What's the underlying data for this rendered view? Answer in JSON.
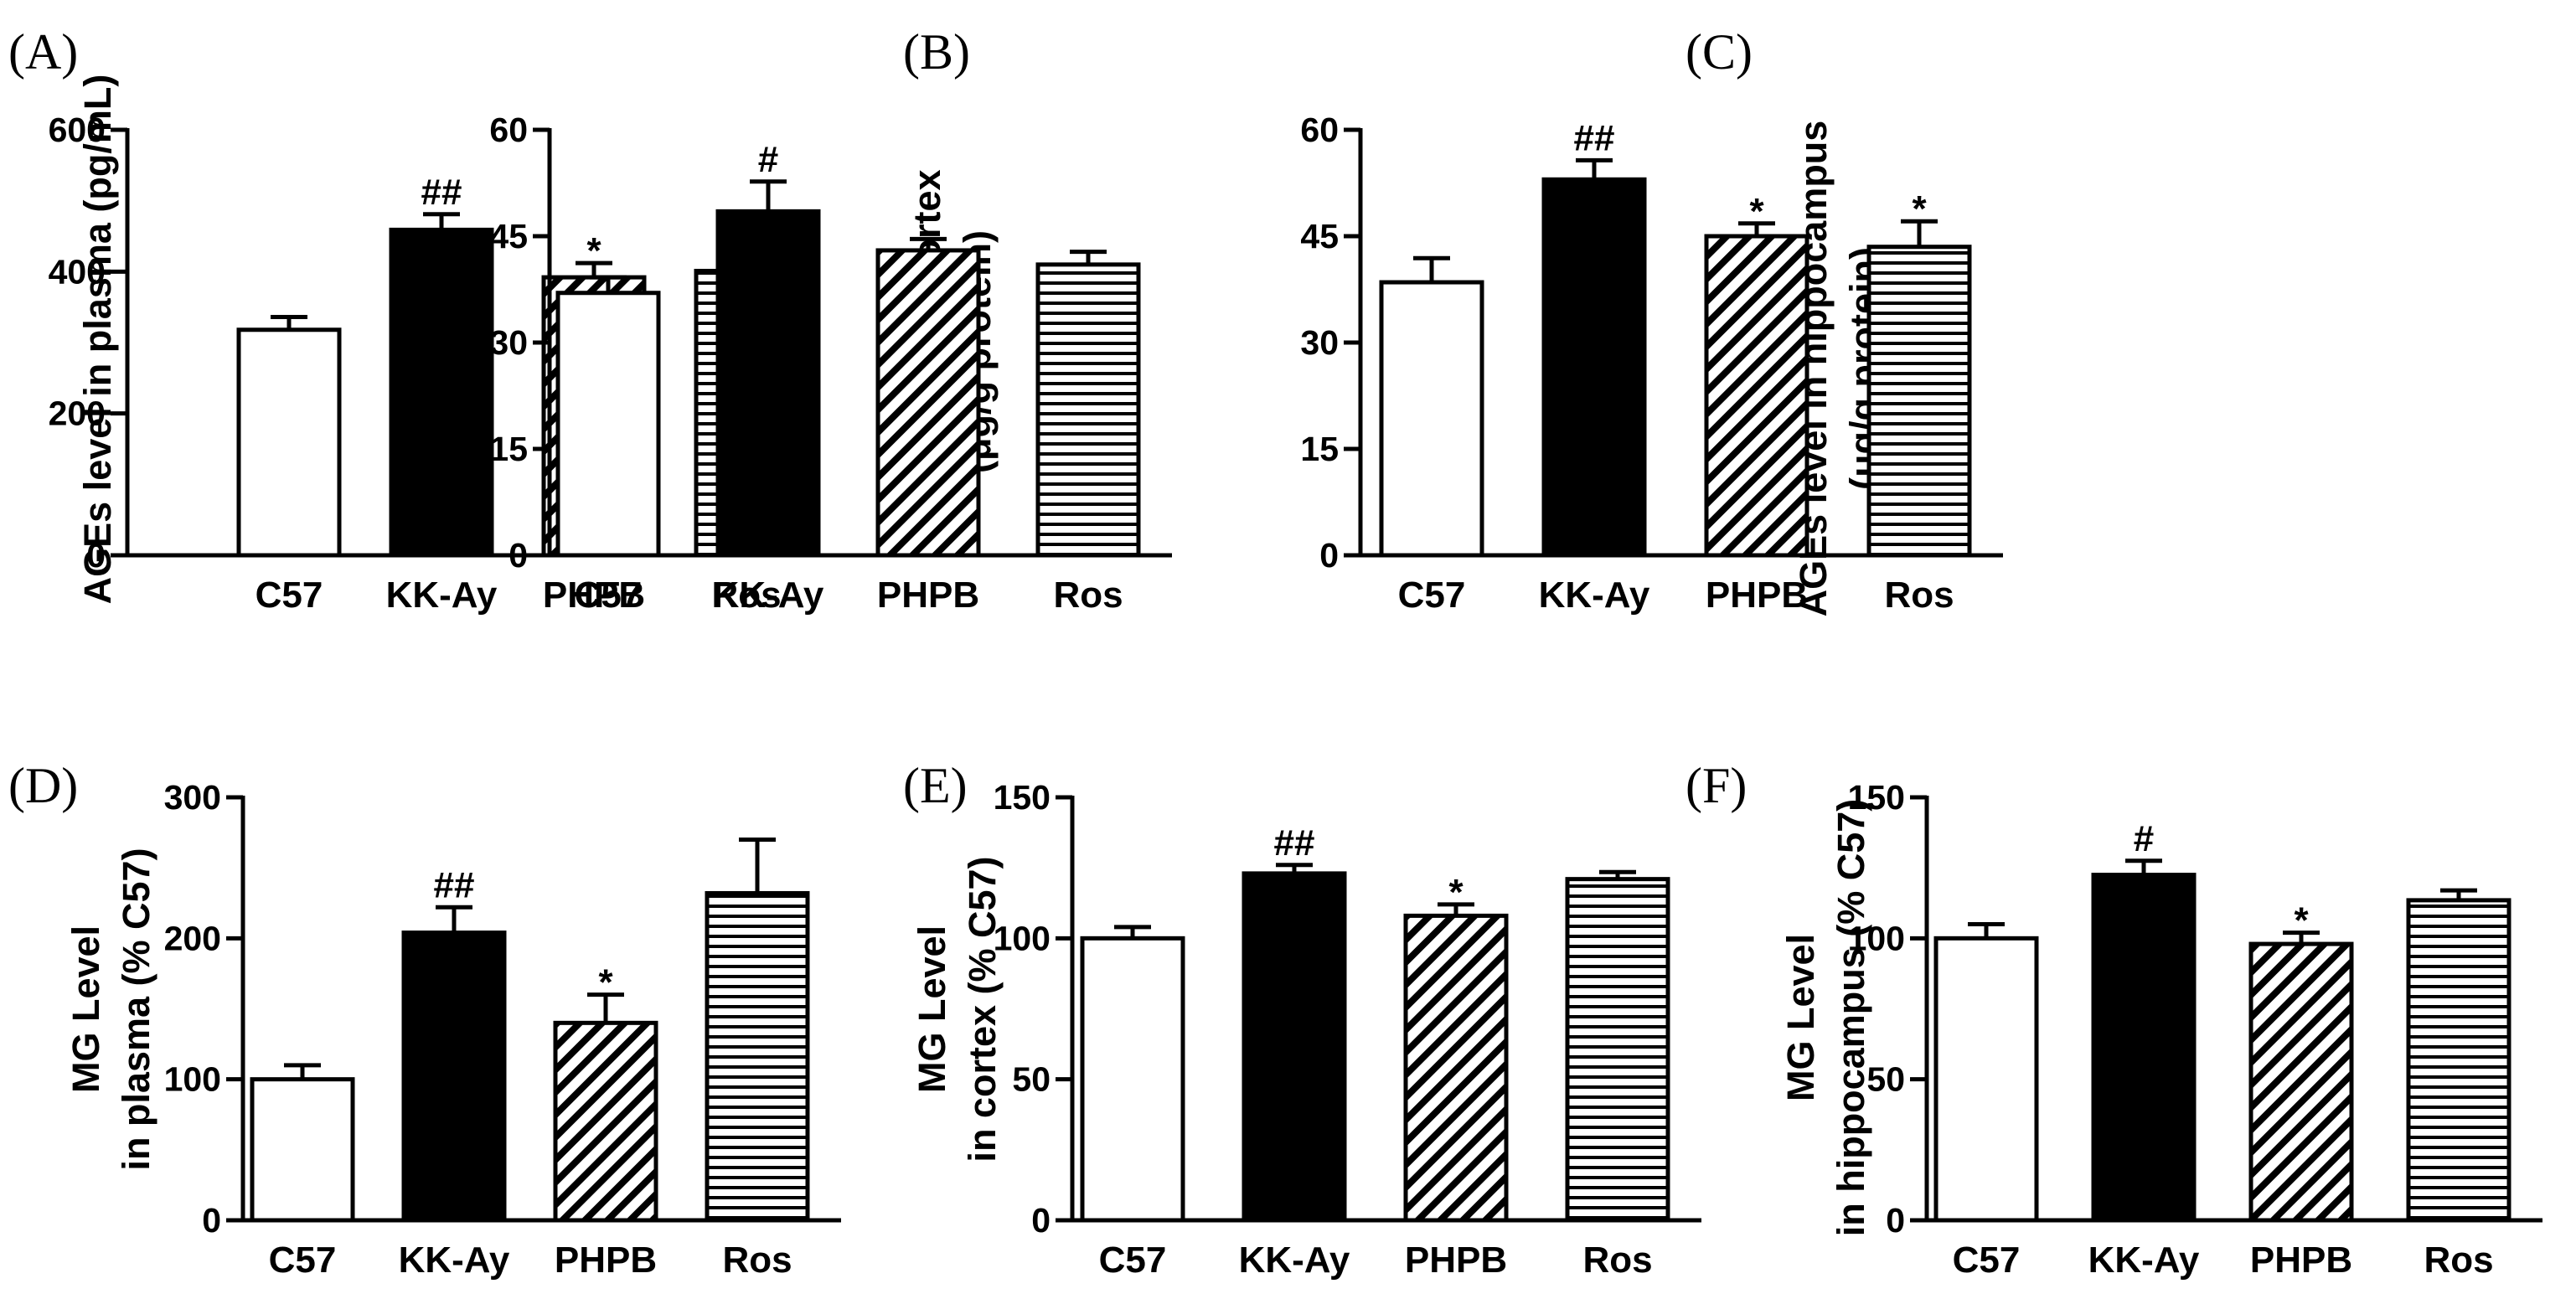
{
  "chart_data": [
    {
      "panel": "(A)",
      "type": "bar",
      "categories": [
        "C57",
        "KK-Ay",
        "PHPB",
        "Ros"
      ],
      "values": [
        318,
        459,
        392,
        401
      ],
      "errors": [
        18,
        22,
        20,
        18
      ],
      "significance": [
        "",
        "##",
        "*",
        "*"
      ],
      "patterns": [
        "open",
        "solid",
        "diagonal",
        "horizontal"
      ],
      "ylabel_lines": [
        "AGEs level in plasma (pg/mL)"
      ],
      "ylim": [
        0,
        600
      ],
      "yticks": [
        "0",
        "200",
        "400",
        "600"
      ]
    },
    {
      "panel": "(B)",
      "type": "bar",
      "categories": [
        "C57",
        "KK-Ay",
        "PHPB",
        "Ros"
      ],
      "values": [
        37,
        48.5,
        43,
        41
      ],
      "errors": [
        2.2,
        4.2,
        1.6,
        1.8
      ],
      "significance": [
        "",
        "#",
        "",
        ""
      ],
      "patterns": [
        "open",
        "solid",
        "diagonal",
        "horizontal"
      ],
      "ylabel_lines": [
        "AGEs level  in cortex",
        "(μg/g protein)"
      ],
      "ylim": [
        0,
        60
      ],
      "yticks": [
        "0",
        "15",
        "30",
        "45",
        "60"
      ]
    },
    {
      "panel": "(C)",
      "type": "bar",
      "categories": [
        "C57",
        "KK-Ay",
        "PHPB",
        "Ros"
      ],
      "values": [
        38.5,
        53,
        45,
        43.5
      ],
      "errors": [
        3.4,
        2.7,
        1.8,
        3.6
      ],
      "significance": [
        "",
        "##",
        "*",
        "*"
      ],
      "patterns": [
        "open",
        "solid",
        "diagonal",
        "horizontal"
      ],
      "ylabel_lines": [
        "AGEs level in hippocampus",
        "(μg/g  protein)"
      ],
      "ylim": [
        0,
        60
      ],
      "yticks": [
        "0",
        "15",
        "30",
        "45",
        "60"
      ]
    },
    {
      "panel": "(D)",
      "type": "bar",
      "categories": [
        "C57",
        "KK-Ay",
        "PHPB",
        "Ros"
      ],
      "values": [
        100,
        204,
        140,
        232
      ],
      "errors": [
        10,
        18,
        20,
        38
      ],
      "significance": [
        "",
        "##",
        "*",
        ""
      ],
      "patterns": [
        "open",
        "solid",
        "diagonal",
        "horizontal"
      ],
      "ylabel_lines": [
        "MG Level",
        "in plasma (% C57)"
      ],
      "ylim": [
        0,
        300
      ],
      "yticks": [
        "0",
        "100",
        "200",
        "300"
      ]
    },
    {
      "panel": "(E)",
      "type": "bar",
      "categories": [
        "C57",
        "KK-Ay",
        "PHPB",
        "Ros"
      ],
      "values": [
        100,
        123,
        108,
        121
      ],
      "errors": [
        4,
        3,
        4,
        2.5
      ],
      "significance": [
        "",
        "##",
        "*",
        ""
      ],
      "patterns": [
        "open",
        "solid",
        "diagonal",
        "horizontal"
      ],
      "ylabel_lines": [
        "MG Level",
        "in cortex (% C57)"
      ],
      "ylim": [
        0,
        150
      ],
      "yticks": [
        "0",
        "50",
        "100",
        "150"
      ]
    },
    {
      "panel": "(F)",
      "type": "bar",
      "categories": [
        "C57",
        "KK-Ay",
        "PHPB",
        "Ros"
      ],
      "values": [
        100,
        122.5,
        98,
        113.5
      ],
      "errors": [
        5,
        5,
        4,
        3.5
      ],
      "significance": [
        "",
        "#",
        "*",
        ""
      ],
      "patterns": [
        "open",
        "solid",
        "diagonal",
        "horizontal"
      ],
      "ylabel_lines": [
        "MG Level",
        "in hippocampus (% C57)"
      ],
      "ylim": [
        0,
        150
      ],
      "yticks": [
        "0",
        "50",
        "100",
        "150"
      ]
    }
  ]
}
